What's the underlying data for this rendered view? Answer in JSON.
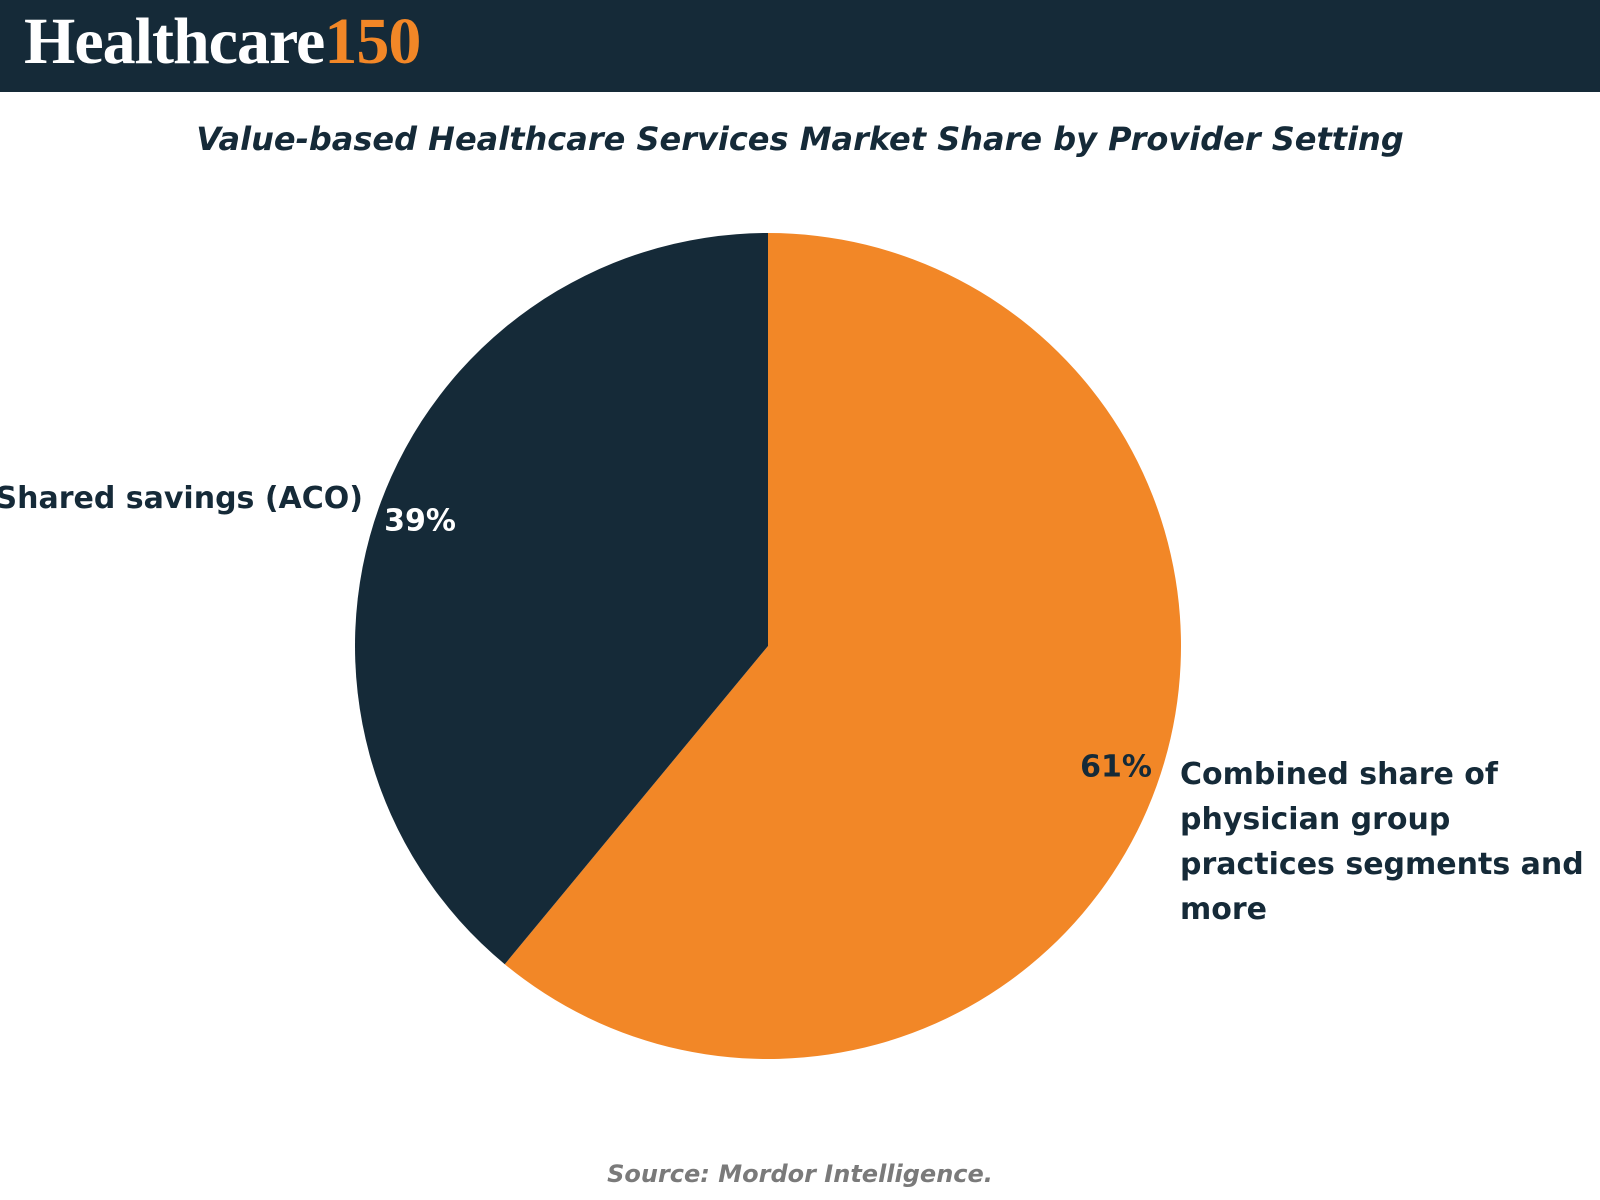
{
  "brand": {
    "name": "Healthcare",
    "number": "150"
  },
  "chart_data": {
    "type": "pie",
    "title": "Value-based Healthcare Services Market Share by Provider Setting",
    "categories": [
      "Combined share of physician group practices segments and more",
      "Shared savings (ACO)"
    ],
    "values": [
      61,
      39
    ],
    "value_labels": [
      "61%",
      "39%"
    ],
    "colors": [
      "#f28727",
      "#152a38"
    ]
  },
  "source": "Source: Mordor Intelligence."
}
